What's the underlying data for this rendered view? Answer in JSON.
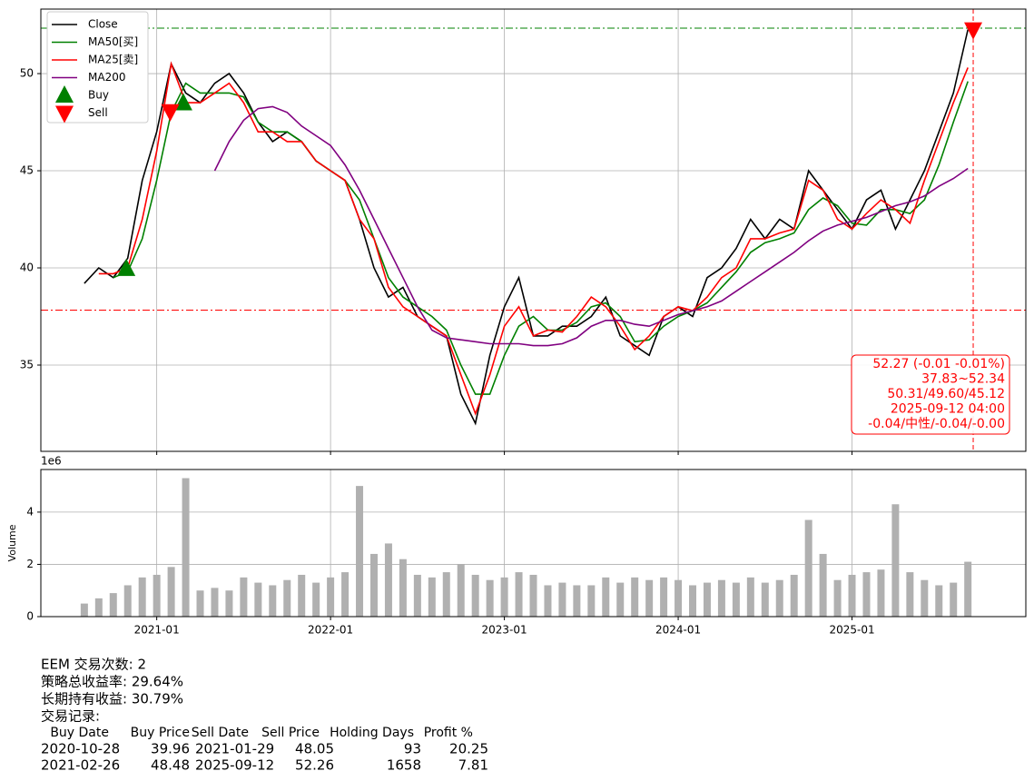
{
  "chart_data": [
    {
      "type": "line",
      "x": [
        "2020-08",
        "2020-09",
        "2020-10",
        "2020-11",
        "2020-12",
        "2021-01",
        "2021-02",
        "2021-03",
        "2021-04",
        "2021-05",
        "2021-06",
        "2021-07",
        "2021-08",
        "2021-09",
        "2021-10",
        "2021-11",
        "2021-12",
        "2022-01",
        "2022-02",
        "2022-03",
        "2022-04",
        "2022-05",
        "2022-06",
        "2022-07",
        "2022-08",
        "2022-09",
        "2022-10",
        "2022-11",
        "2022-12",
        "2023-01",
        "2023-02",
        "2023-03",
        "2023-04",
        "2023-05",
        "2023-06",
        "2023-07",
        "2023-08",
        "2023-09",
        "2023-10",
        "2023-11",
        "2023-12",
        "2024-01",
        "2024-02",
        "2024-03",
        "2024-04",
        "2024-05",
        "2024-06",
        "2024-07",
        "2024-08",
        "2024-09",
        "2024-10",
        "2024-11",
        "2024-12",
        "2025-01",
        "2025-02",
        "2025-03",
        "2025-04",
        "2025-05",
        "2025-06",
        "2025-07",
        "2025-08",
        "2025-09"
      ],
      "series": [
        {
          "name": "Close",
          "color": "#000000",
          "style": "line",
          "values": [
            39.2,
            40.0,
            39.5,
            40.5,
            44.5,
            47,
            50.5,
            49,
            48.5,
            49.5,
            50,
            49,
            47.5,
            46.5,
            47,
            46.5,
            45.5,
            45,
            44.5,
            42.5,
            40,
            38.5,
            39,
            37.5,
            37,
            36.5,
            33.5,
            32,
            35.5,
            38,
            39.5,
            36.5,
            36.5,
            37,
            37,
            37.5,
            38.5,
            36.5,
            36,
            35.5,
            37.5,
            38,
            37.5,
            39.5,
            40,
            41,
            42.5,
            41.5,
            42.5,
            42,
            45,
            44,
            43,
            42,
            43.5,
            44,
            42,
            43.5,
            45,
            47,
            49,
            52.27
          ]
        },
        {
          "name": "MA50[买]",
          "color": "#008000",
          "style": "line",
          "values": [
            null,
            null,
            39.5,
            39.8,
            41.5,
            44.5,
            48,
            49.5,
            49,
            49,
            49,
            48.8,
            47.5,
            47,
            47,
            46.5,
            45.5,
            45,
            44.5,
            43.5,
            41.5,
            39.5,
            38.5,
            38,
            37.5,
            36.8,
            35,
            33.5,
            33.5,
            35.5,
            37,
            37.5,
            36.8,
            36.8,
            37.2,
            38,
            38.2,
            37.5,
            36.2,
            36.3,
            37,
            37.5,
            37.8,
            38.2,
            39,
            39.8,
            40.8,
            41.3,
            41.5,
            41.8,
            43,
            43.6,
            43.2,
            42.3,
            42.2,
            43,
            43,
            42.8,
            43.5,
            45.3,
            47.5,
            49.6
          ]
        },
        {
          "name": "MA25[卖]",
          "color": "#ff0000",
          "style": "line",
          "values": [
            null,
            39.7,
            39.7,
            40.0,
            42.5,
            46,
            50.5,
            48.5,
            48.5,
            49,
            49.5,
            48.5,
            47,
            47,
            46.5,
            46.5,
            45.5,
            45,
            44.5,
            42.5,
            41.5,
            39,
            38,
            37.5,
            37,
            36.5,
            34.5,
            32.5,
            34.5,
            37,
            38,
            36.5,
            36.8,
            36.7,
            37.5,
            38.5,
            38,
            37,
            35.8,
            36.5,
            37.5,
            38,
            37.8,
            38.5,
            39.5,
            40,
            41.5,
            41.5,
            41.8,
            42,
            44.5,
            44,
            42.5,
            42,
            42.8,
            43.5,
            43,
            42.3,
            44.5,
            46.5,
            48.5,
            50.31
          ]
        },
        {
          "name": "MA200",
          "color": "#800080",
          "style": "line",
          "values": [
            null,
            null,
            null,
            null,
            null,
            null,
            null,
            null,
            null,
            45,
            46.5,
            47.6,
            48.2,
            48.3,
            48,
            47.3,
            46.8,
            46.3,
            45.3,
            44,
            42.5,
            41,
            39.5,
            38,
            36.8,
            36.4,
            36.3,
            36.2,
            36.1,
            36.1,
            36.1,
            36,
            36,
            36.1,
            36.4,
            37,
            37.3,
            37.3,
            37.1,
            37,
            37.3,
            37.6,
            37.8,
            38,
            38.3,
            38.8,
            39.3,
            39.8,
            40.3,
            40.8,
            41.4,
            41.9,
            42.2,
            42.4,
            42.6,
            42.9,
            43.2,
            43.4,
            43.7,
            44.2,
            44.6,
            45.12
          ]
        },
        {
          "name": "Buy",
          "color": "#008000",
          "style": "marker-up",
          "x": [
            "2020-10-28",
            "2021-02-26"
          ],
          "values": [
            39.96,
            48.48
          ]
        },
        {
          "name": "Sell",
          "color": "#ff0000",
          "style": "marker-down",
          "x": [
            "2021-01-29",
            "2025-09-12"
          ],
          "values": [
            48.05,
            52.26
          ]
        }
      ],
      "hlines": [
        {
          "value": 52.34,
          "color": "#008000"
        },
        {
          "value": 37.83,
          "color": "#ff0000"
        }
      ],
      "vline": {
        "x": "2025-09-12",
        "color": "#ff0000"
      },
      "annotation": [
        "52.27 (-0.01 -0.01%)",
        "37.83~52.34",
        "50.31/49.60/45.12",
        "2025-09-12 04:00",
        "-0.04/中性/-0.04/-0.00"
      ],
      "xlim": [
        "2020-05",
        "2026-01"
      ],
      "xticks": [
        "2021-01",
        "2022-01",
        "2023-01",
        "2024-01",
        "2025-01"
      ],
      "ylim": [
        30.56,
        53.32
      ],
      "yticks": [
        35,
        40,
        45,
        50
      ],
      "grid": true,
      "legend": "upper left"
    },
    {
      "type": "bar",
      "ylabel": "Volume",
      "offset_label": "1e6",
      "color": "#b0b0b0",
      "x": [
        "2020-08",
        "2020-09",
        "2020-10",
        "2020-11",
        "2020-12",
        "2021-01",
        "2021-02",
        "2021-03",
        "2021-04",
        "2021-05",
        "2021-06",
        "2021-07",
        "2021-08",
        "2021-09",
        "2021-10",
        "2021-11",
        "2021-12",
        "2022-01",
        "2022-02",
        "2022-03",
        "2022-04",
        "2022-05",
        "2022-06",
        "2022-07",
        "2022-08",
        "2022-09",
        "2022-10",
        "2022-11",
        "2022-12",
        "2023-01",
        "2023-02",
        "2023-03",
        "2023-04",
        "2023-05",
        "2023-06",
        "2023-07",
        "2023-08",
        "2023-09",
        "2023-10",
        "2023-11",
        "2023-12",
        "2024-01",
        "2024-02",
        "2024-03",
        "2024-04",
        "2024-05",
        "2024-06",
        "2024-07",
        "2024-08",
        "2024-09",
        "2024-10",
        "2024-11",
        "2024-12",
        "2025-01",
        "2025-02",
        "2025-03",
        "2025-04",
        "2025-05",
        "2025-06",
        "2025-07",
        "2025-08",
        "2025-09"
      ],
      "values": [
        0.5,
        0.7,
        0.9,
        1.2,
        1.5,
        1.6,
        1.9,
        5.3,
        1.0,
        1.1,
        1.0,
        1.5,
        1.3,
        1.2,
        1.4,
        1.6,
        1.3,
        1.5,
        1.7,
        5.0,
        2.4,
        2.8,
        2.2,
        1.6,
        1.5,
        1.7,
        2.0,
        1.6,
        1.4,
        1.5,
        1.7,
        1.6,
        1.2,
        1.3,
        1.2,
        1.2,
        1.5,
        1.3,
        1.5,
        1.4,
        1.5,
        1.4,
        1.2,
        1.3,
        1.4,
        1.3,
        1.5,
        1.3,
        1.4,
        1.6,
        3.7,
        2.4,
        1.4,
        1.6,
        1.7,
        1.8,
        4.3,
        1.7,
        1.4,
        1.2,
        1.3,
        2.1
      ],
      "xlim": [
        "2020-05",
        "2026-01"
      ],
      "xticks": [
        "2021-01",
        "2022-01",
        "2023-01",
        "2024-01",
        "2025-01"
      ],
      "ylim": [
        0,
        5.63
      ],
      "yticks": [
        0,
        2,
        4
      ],
      "grid": true
    }
  ],
  "summary": [
    "EEM 交易次数: 2",
    "策略总收益率: 29.64%",
    "长期持有收益: 30.79%",
    "交易记录:"
  ],
  "trades": {
    "columns": [
      "Buy Date",
      "Buy Price",
      "Sell Date",
      "Sell Price",
      "Holding Days",
      "Profit %"
    ],
    "rows": [
      [
        "2020-10-28",
        39.96,
        "2021-01-29",
        48.05,
        93,
        20.25
      ],
      [
        "2021-02-26",
        48.48,
        "2025-09-12",
        52.26,
        1658,
        7.81
      ]
    ]
  }
}
